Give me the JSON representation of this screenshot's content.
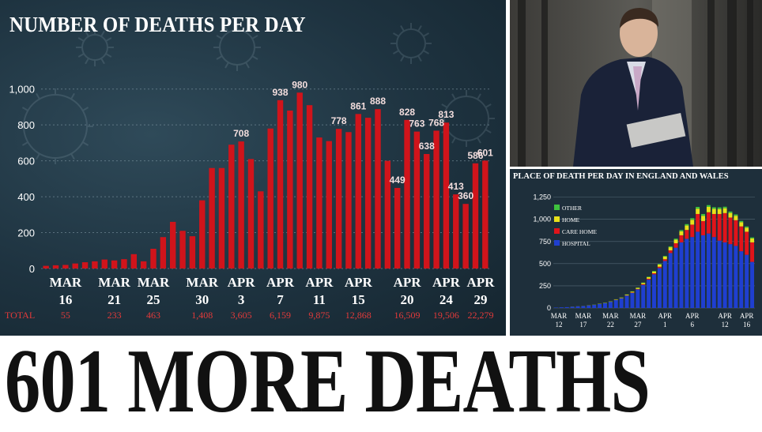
{
  "headline": "601 MORE DEATHS",
  "chart_data": [
    {
      "type": "bar",
      "title": "NUMBER OF DEATHS PER DAY",
      "ylim": [
        0,
        1100
      ],
      "yticks": [
        0,
        200,
        400,
        600,
        800,
        "1,000"
      ],
      "color": "#d0141b",
      "values": [
        15,
        18,
        20,
        28,
        35,
        40,
        50,
        45,
        52,
        80,
        40,
        110,
        175,
        260,
        210,
        180,
        380,
        560,
        560,
        690,
        708,
        610,
        430,
        780,
        938,
        880,
        980,
        910,
        730,
        710,
        778,
        760,
        861,
        840,
        888,
        600,
        449,
        828,
        763,
        638,
        768,
        813,
        413,
        360,
        586,
        601
      ],
      "labeled_bars": [
        {
          "index": 20,
          "label": "708"
        },
        {
          "index": 24,
          "label": "938"
        },
        {
          "index": 26,
          "label": "980"
        },
        {
          "index": 30,
          "label": "778"
        },
        {
          "index": 32,
          "label": "861"
        },
        {
          "index": 34,
          "label": "888"
        },
        {
          "index": 36,
          "label": "449"
        },
        {
          "index": 37,
          "label": "828"
        },
        {
          "index": 38,
          "label": "763"
        },
        {
          "index": 39,
          "label": "638"
        },
        {
          "index": 40,
          "label": "768"
        },
        {
          "index": 41,
          "label": "813"
        },
        {
          "index": 42,
          "label": "413"
        },
        {
          "index": 43,
          "label": "360"
        },
        {
          "index": 44,
          "label": "586"
        },
        {
          "index": 45,
          "label": "601"
        }
      ],
      "x_ticks": [
        {
          "index": 2,
          "month": "MAR",
          "day": "16",
          "total": "55"
        },
        {
          "index": 7,
          "month": "MAR",
          "day": "21",
          "total": "233"
        },
        {
          "index": 11,
          "month": "MAR",
          "day": "25",
          "total": "463"
        },
        {
          "index": 16,
          "month": "MAR",
          "day": "30",
          "total": "1,408"
        },
        {
          "index": 20,
          "month": "APR",
          "day": "3",
          "total": "3,605"
        },
        {
          "index": 24,
          "month": "APR",
          "day": "7",
          "total": "6,159"
        },
        {
          "index": 28,
          "month": "APR",
          "day": "11",
          "total": "9,875"
        },
        {
          "index": 32,
          "month": "APR",
          "day": "15",
          "total": "12,868"
        },
        {
          "index": 37,
          "month": "APR",
          "day": "20",
          "total": "16,509"
        },
        {
          "index": 41,
          "month": "APR",
          "day": "24",
          "total": "19,506"
        },
        {
          "index": 46,
          "month": "APR",
          "day": "29",
          "total": "22,279"
        }
      ],
      "total_label": "TOTAL"
    },
    {
      "type": "bar",
      "stacked": true,
      "title": "PLACE OF DEATH PER DAY IN ENGLAND AND WALES",
      "ylim": [
        0,
        1300
      ],
      "yticks": [
        "0",
        "250",
        "500",
        "750",
        "1,000",
        "1,250"
      ],
      "x_ticks": [
        {
          "index": 0,
          "month": "MAR",
          "day": "12"
        },
        {
          "index": 5,
          "month": "MAR",
          "day": "17"
        },
        {
          "index": 10,
          "month": "MAR",
          "day": "22"
        },
        {
          "index": 15,
          "month": "MAR",
          "day": "27"
        },
        {
          "index": 20,
          "month": "APR",
          "day": "1"
        },
        {
          "index": 25,
          "month": "APR",
          "day": "6"
        },
        {
          "index": 31,
          "month": "APR",
          "day": "12"
        },
        {
          "index": 35,
          "month": "APR",
          "day": "16"
        }
      ],
      "legend": [
        {
          "name": "OTHER",
          "color": "#3ec23e"
        },
        {
          "name": "HOME",
          "color": "#e8e01a"
        },
        {
          "name": "CARE HOME",
          "color": "#e0141a"
        },
        {
          "name": "HOSPITAL",
          "color": "#1f3fd0"
        }
      ],
      "series": [
        {
          "name": "HOSPITAL",
          "values": [
            5,
            8,
            10,
            14,
            18,
            22,
            28,
            35,
            45,
            55,
            70,
            90,
            110,
            140,
            170,
            210,
            260,
            320,
            380,
            450,
            530,
            620,
            680,
            740,
            780,
            800,
            860,
            820,
            840,
            800,
            760,
            740,
            720,
            700,
            640,
            600,
            520
          ]
        },
        {
          "name": "CARE HOME",
          "values": [
            0,
            0,
            0,
            0,
            0,
            0,
            0,
            0,
            0,
            0,
            0,
            2,
            2,
            3,
            5,
            5,
            8,
            10,
            12,
            15,
            20,
            30,
            50,
            80,
            100,
            140,
            200,
            160,
            240,
            260,
            300,
            330,
            300,
            290,
            280,
            260,
            220
          ]
        },
        {
          "name": "HOME",
          "values": [
            0,
            0,
            0,
            1,
            1,
            1,
            2,
            2,
            3,
            3,
            4,
            5,
            6,
            8,
            10,
            12,
            15,
            18,
            20,
            25,
            30,
            35,
            40,
            45,
            50,
            55,
            60,
            60,
            60,
            58,
            56,
            55,
            52,
            50,
            48,
            46,
            44
          ]
        },
        {
          "name": "OTHER",
          "values": [
            0,
            0,
            0,
            0,
            0,
            0,
            0,
            1,
            1,
            1,
            1,
            2,
            2,
            2,
            3,
            3,
            4,
            5,
            6,
            7,
            8,
            10,
            12,
            14,
            16,
            18,
            20,
            20,
            20,
            18,
            18,
            17,
            16,
            15,
            14,
            13,
            12
          ]
        }
      ]
    }
  ]
}
